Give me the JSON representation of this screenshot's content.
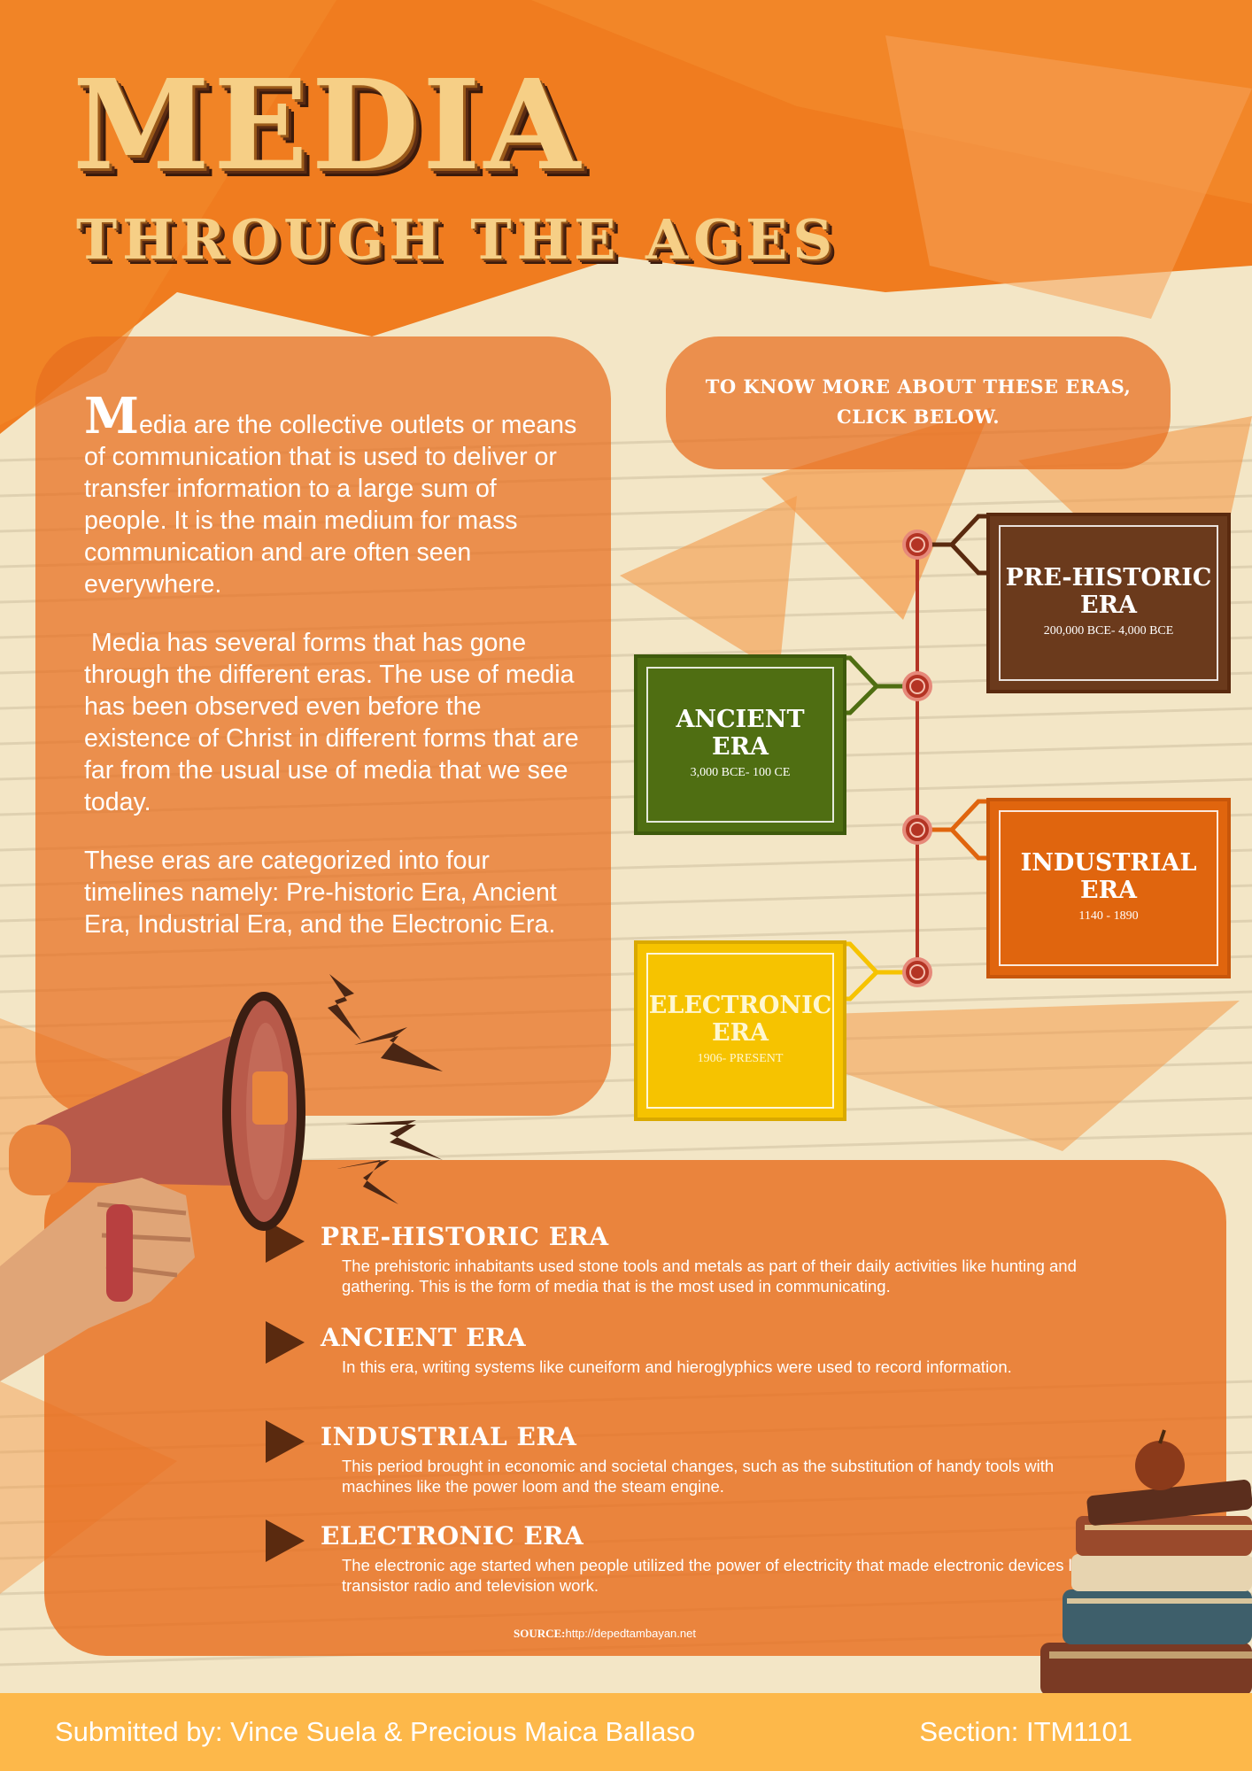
{
  "title": {
    "main": "MEDIA",
    "sub": "THROUGH THE AGES"
  },
  "intro": {
    "dropcap": "M",
    "p1_rest": "edia are the collective outlets or means of communication that is used to deliver or transfer information to a large sum of people.  It is the main medium for mass communication and are often seen everywhere.",
    "p2": "Media has several forms that has gone through the different eras. The use of media has been observed even before the existence of Christ in different forms that are far from the usual use of media that we see today.",
    "p3": "These eras are categorized into four timelines namely: Pre-historic Era, Ancient Era, Industrial Era, and the Electronic Era."
  },
  "cta": {
    "line1": "TO KNOW MORE ABOUT THESE ERAS,",
    "line2": "CLICK BELOW."
  },
  "timeline": [
    {
      "name1": "PRE-HISTORIC",
      "name2": "ERA",
      "dates": "200,000 BCE- 4,000 BCE",
      "color": "#6b3a1c"
    },
    {
      "name1": "ANCIENT",
      "name2": "ERA",
      "dates": "3,000 BCE- 100 CE",
      "color": "#4f6e12"
    },
    {
      "name1": "INDUSTRIAL",
      "name2": "ERA",
      "dates": "1140 - 1890",
      "color": "#e0650e"
    },
    {
      "name1": "ELECTRONIC",
      "name2": "ERA",
      "dates": "1906- PRESENT",
      "color": "#f6c300"
    }
  ],
  "eras": [
    {
      "heading": "PRE-HISTORIC ERA",
      "desc": "The prehistoric inhabitants used stone tools and metals as part of their daily activities like hunting and gathering. This is the form of media that is the most used in communicating."
    },
    {
      "heading": "ANCIENT ERA",
      "desc": "In this era, writing systems like cuneiform and hieroglyphics were used to record information."
    },
    {
      "heading": "INDUSTRIAL ERA",
      "desc": "This period brought in economic and societal changes, such as the substitution of handy tools with machines like the power loom and the steam engine."
    },
    {
      "heading": "ELECTRONIC ERA",
      "desc": "The electronic age started when people utilized the power of electricity that made electronic devices like transistor radio and television work."
    }
  ],
  "source": {
    "label": "SOURCE:",
    "url": "http://depedtambayan.net"
  },
  "footer": {
    "submitted": "Submitted by: Vince Suela & Precious Maica Ballaso",
    "section": "Section: ITM1101"
  },
  "colors": {
    "accent": "#e8701e",
    "dark_brown": "#5a2a0f",
    "footer": "#fdb84a"
  },
  "icons": [
    "megaphone-icon",
    "books-icon"
  ]
}
